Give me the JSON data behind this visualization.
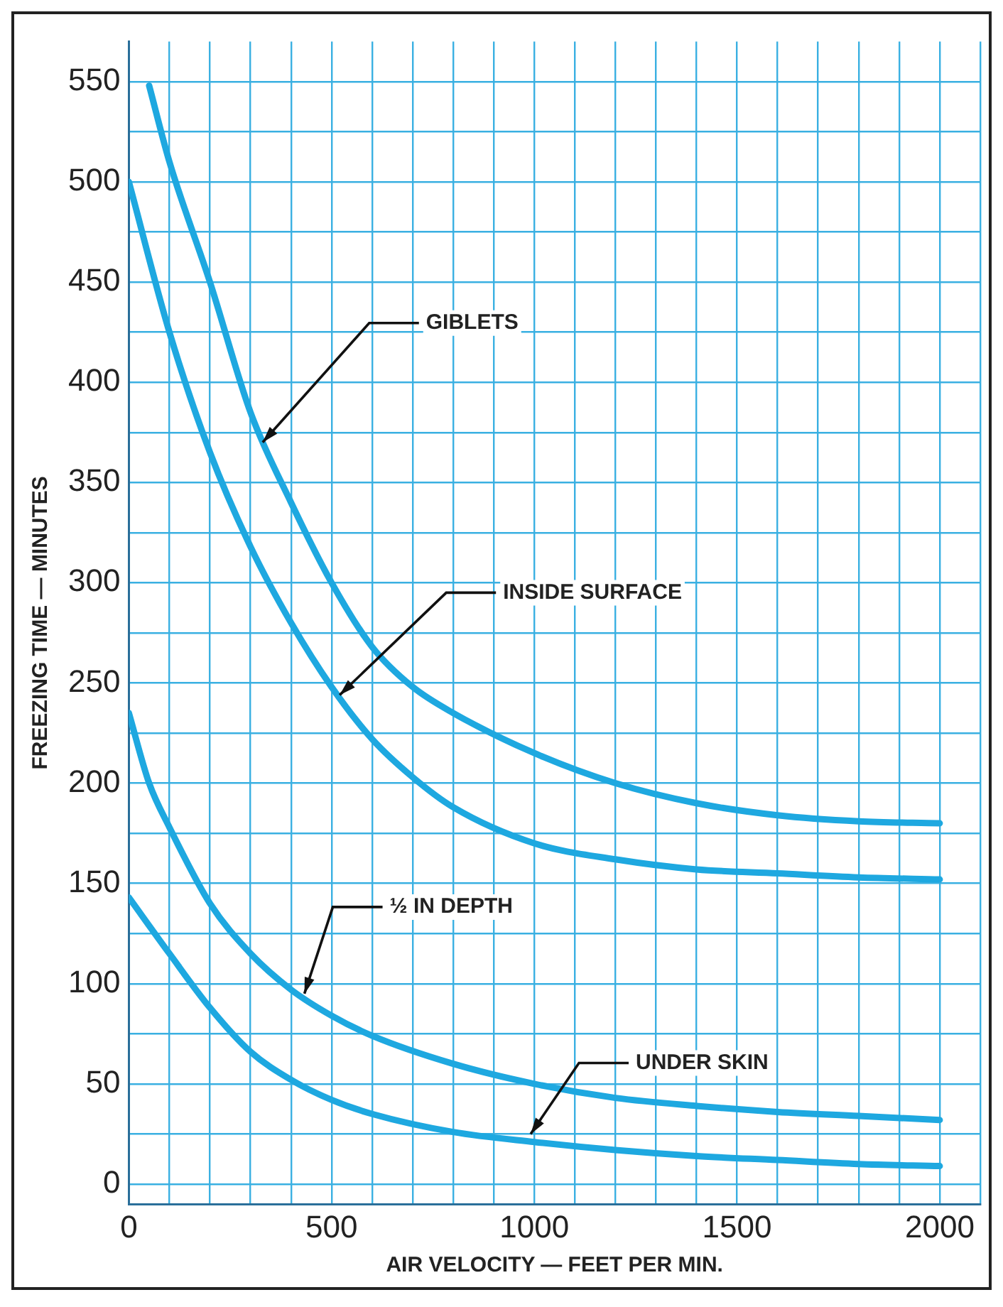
{
  "chart_data": {
    "type": "line",
    "xlabel": "AIR VELOCITY — FEET PER MIN.",
    "ylabel": "FREEZING TIME — MINUTES",
    "xlim": [
      0,
      2100
    ],
    "xticks": [
      0,
      {
        "value": 100,
        "label": null
      },
      {
        "value": 200,
        "label": null
      },
      {
        "value": 300,
        "label": null
      },
      {
        "value": 400,
        "label": null
      },
      500,
      {
        "value": 600,
        "label": null
      },
      {
        "value": 700,
        "label": null
      },
      {
        "value": 800,
        "label": null
      },
      {
        "value": 900,
        "label": null
      },
      1000,
      {
        "value": 1100,
        "label": null
      },
      {
        "value": 1200,
        "label": null
      },
      {
        "value": 1300,
        "label": null
      },
      {
        "value": 1400,
        "label": null
      },
      1500,
      {
        "value": 1600,
        "label": null
      },
      {
        "value": 1700,
        "label": null
      },
      {
        "value": 1800,
        "label": null
      },
      {
        "value": 1900,
        "label": null
      },
      2000,
      {
        "value": 2100,
        "label": null
      }
    ],
    "ylim": [
      -10,
      570
    ],
    "yticks": [
      0,
      {
        "value": 25,
        "label": null
      },
      50,
      {
        "value": 75,
        "label": null
      },
      100,
      {
        "value": 125,
        "label": null
      },
      150,
      {
        "value": 175,
        "label": null
      },
      200,
      {
        "value": 225,
        "label": null
      },
      250,
      {
        "value": 275,
        "label": null
      },
      300,
      {
        "value": 325,
        "label": null
      },
      350,
      {
        "value": 375,
        "label": null
      },
      400,
      {
        "value": 425,
        "label": null
      },
      450,
      {
        "value": 475,
        "label": null
      },
      500,
      {
        "value": 525,
        "label": null
      },
      550
    ],
    "grid": true,
    "marker": "none",
    "line_style": "solid",
    "series": [
      {
        "color": "#1ea8e0",
        "x": [
          50,
          100,
          200,
          300,
          400,
          500,
          600,
          700,
          800,
          1000,
          1200,
          1400,
          1600,
          1800,
          2000
        ],
        "values": [
          548,
          510,
          450,
          385,
          340,
          300,
          268,
          248,
          235,
          215,
          200,
          190,
          184,
          181,
          180
        ]
      },
      {
        "color": "#1ea8e0",
        "x": [
          0,
          100,
          200,
          300,
          400,
          500,
          600,
          700,
          800,
          1000,
          1200,
          1400,
          1600,
          1800,
          2000
        ],
        "values": [
          500,
          425,
          365,
          318,
          280,
          248,
          222,
          203,
          188,
          170,
          162,
          157,
          155,
          153,
          152
        ]
      },
      {
        "color": "#1ea8e0",
        "x": [
          0,
          50,
          100,
          200,
          300,
          400,
          500,
          600,
          800,
          1000,
          1200,
          1400,
          1600,
          1800,
          2000
        ],
        "values": [
          235,
          200,
          178,
          140,
          115,
          97,
          84,
          74,
          60,
          50,
          43,
          39,
          36,
          34,
          32
        ]
      },
      {
        "color": "#1ea8e0",
        "x": [
          0,
          100,
          200,
          300,
          400,
          500,
          600,
          800,
          1000,
          1200,
          1400,
          1600,
          1800,
          2000
        ],
        "values": [
          143,
          115,
          88,
          66,
          52,
          42,
          35,
          26,
          21,
          17,
          14,
          12,
          10,
          9
        ]
      }
    ],
    "annotations": [
      {
        "text": "GIBLETS",
        "x": 330,
        "y": 370
      },
      {
        "text": "INSIDE SURFACE",
        "x": 520,
        "y": 244
      },
      {
        "text": "½ IN DEPTH",
        "x": 433,
        "y": 95
      },
      {
        "text": "UNDER SKIN",
        "x": 991,
        "y": 25
      }
    ]
  }
}
